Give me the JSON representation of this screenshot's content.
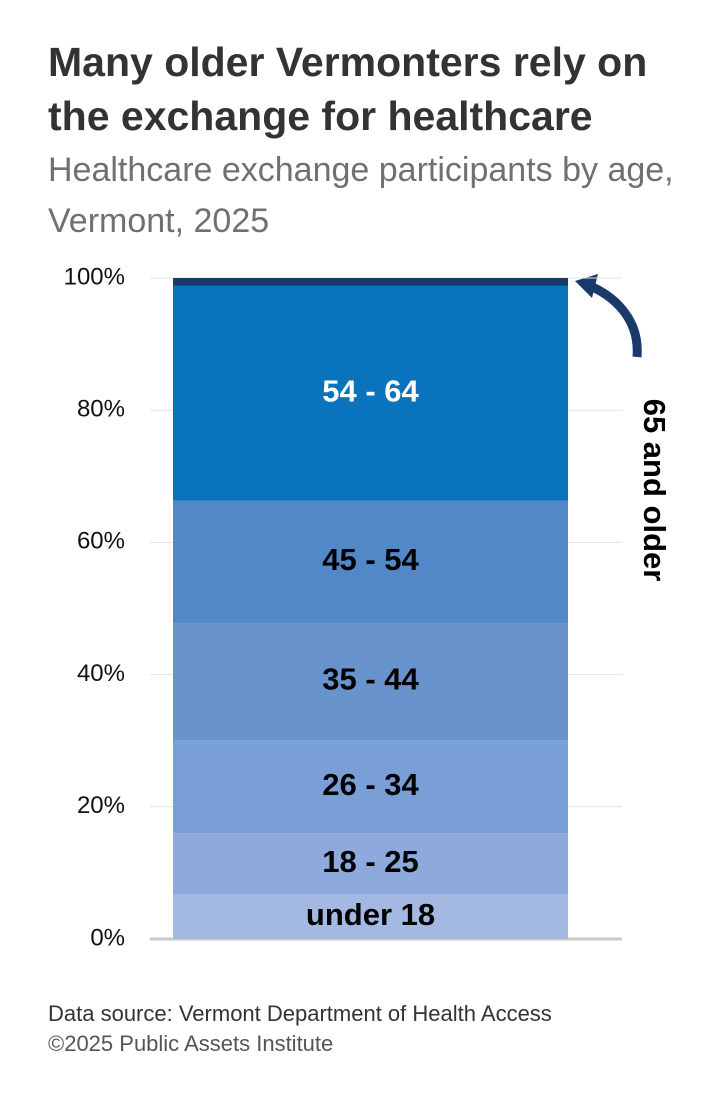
{
  "chart_data": {
    "type": "stacked_bar",
    "title": "Many older Vermonters rely on the exchange for healthcare",
    "subtitle": "Healthcare exchange participants by age, Vermont, 2025",
    "categories": [
      null
    ],
    "series": [
      {
        "name": "under 18",
        "color": "#a3b9e2",
        "label_color": "#000000",
        "values": [
          6.7
        ]
      },
      {
        "name": "18 - 25",
        "color": "#8eaadc",
        "label_color": "#000000",
        "values": [
          9.3
        ]
      },
      {
        "name": "26 - 34",
        "color": "#7a9fd6",
        "label_color": "#000000",
        "values": [
          14.1
        ]
      },
      {
        "name": "35 - 44",
        "color": "#6893cd",
        "label_color": "#000000",
        "values": [
          17.7
        ]
      },
      {
        "name": "45 - 54",
        "color": "#5288c8",
        "label_color": "#000000",
        "values": [
          18.5
        ]
      },
      {
        "name": "54 - 64",
        "color": "#0a73bd",
        "label_color": "#ffffff",
        "values": [
          32.5
        ]
      },
      {
        "name": "65 and older",
        "color": "#1a3a6b",
        "label_color": "#000000",
        "values": [
          1.2
        ]
      }
    ],
    "ylim": [
      0,
      100
    ],
    "yticks": [
      {
        "value": 0,
        "label": "0%"
      },
      {
        "value": 20,
        "label": "20%"
      },
      {
        "value": 40,
        "label": "40%"
      },
      {
        "value": 60,
        "label": "60%"
      },
      {
        "value": 80,
        "label": "80%"
      },
      {
        "value": 100,
        "label": "100%"
      }
    ],
    "grid": true,
    "source": "Data source: Vermont Department of Health Access",
    "copyright": "©2025 Public Assets Institute"
  }
}
